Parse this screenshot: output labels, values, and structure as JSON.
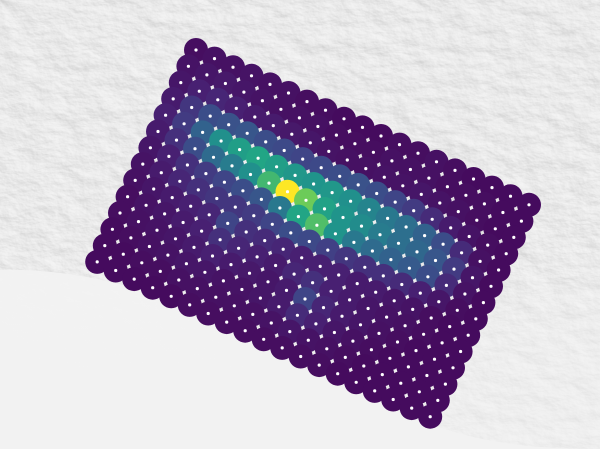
{
  "map": {
    "basemap": "grey-shaded-relief",
    "layer": {
      "type": "grid-cells",
      "colormap": "viridis",
      "cell_marker": "white-dot",
      "rows": 14,
      "cols": 19,
      "values": [
        [
          0.05,
          0.06,
          0.06,
          0.07,
          0.06,
          0.06,
          0.05,
          0.05,
          0.04,
          0.04,
          0.04,
          0.05,
          0.05,
          0.06,
          0.05,
          0.04,
          0.04,
          0.04,
          0.04
        ],
        [
          0.07,
          0.08,
          0.09,
          0.08,
          0.07,
          0.06,
          0.06,
          0.06,
          0.05,
          0.05,
          0.05,
          0.06,
          0.06,
          0.06,
          0.05,
          0.05,
          0.05,
          0.04,
          0.04
        ],
        [
          0.08,
          0.12,
          0.14,
          0.12,
          0.1,
          0.1,
          0.09,
          0.08,
          0.07,
          0.06,
          0.06,
          0.07,
          0.07,
          0.08,
          0.07,
          0.06,
          0.05,
          0.04,
          0.04
        ],
        [
          0.1,
          0.2,
          0.3,
          0.32,
          0.34,
          0.3,
          0.28,
          0.26,
          0.28,
          0.3,
          0.32,
          0.3,
          0.26,
          0.22,
          0.16,
          0.1,
          0.07,
          0.05,
          0.04
        ],
        [
          0.12,
          0.22,
          0.4,
          0.62,
          0.7,
          0.74,
          0.7,
          0.66,
          0.64,
          0.66,
          0.62,
          0.56,
          0.5,
          0.46,
          0.4,
          0.3,
          0.16,
          0.06,
          0.04
        ],
        [
          0.1,
          0.18,
          0.3,
          0.44,
          0.52,
          0.62,
          0.8,
          1.0,
          0.86,
          0.72,
          0.64,
          0.6,
          0.52,
          0.46,
          0.42,
          0.34,
          0.22,
          0.08,
          0.04
        ],
        [
          0.08,
          0.12,
          0.18,
          0.22,
          0.26,
          0.3,
          0.34,
          0.5,
          0.74,
          0.82,
          0.64,
          0.5,
          0.44,
          0.4,
          0.36,
          0.3,
          0.16,
          0.07,
          0.04
        ],
        [
          0.07,
          0.1,
          0.14,
          0.18,
          0.2,
          0.2,
          0.22,
          0.26,
          0.3,
          0.28,
          0.24,
          0.2,
          0.18,
          0.18,
          0.16,
          0.12,
          0.08,
          0.05,
          0.04
        ],
        [
          0.06,
          0.08,
          0.1,
          0.12,
          0.14,
          0.26,
          0.18,
          0.16,
          0.14,
          0.12,
          0.12,
          0.12,
          0.1,
          0.1,
          0.08,
          0.07,
          0.05,
          0.04,
          0.04
        ],
        [
          0.05,
          0.07,
          0.08,
          0.1,
          0.12,
          0.18,
          0.14,
          0.12,
          0.1,
          0.14,
          0.18,
          0.12,
          0.1,
          0.08,
          0.07,
          0.06,
          0.05,
          0.04,
          0.04
        ],
        [
          0.05,
          0.06,
          0.07,
          0.08,
          0.1,
          0.12,
          0.1,
          0.09,
          0.08,
          0.1,
          0.26,
          0.14,
          0.1,
          0.08,
          0.06,
          0.05,
          0.04,
          0.04,
          0.04
        ],
        [
          0.04,
          0.05,
          0.06,
          0.07,
          0.08,
          0.08,
          0.07,
          0.07,
          0.08,
          0.1,
          0.16,
          0.12,
          0.08,
          0.06,
          0.05,
          0.04,
          0.04,
          0.04,
          0.04
        ],
        [
          0.04,
          0.04,
          0.05,
          0.05,
          0.06,
          0.06,
          0.06,
          0.06,
          0.06,
          0.07,
          0.08,
          0.07,
          0.06,
          0.05,
          0.04,
          0.04,
          0.04,
          0.04,
          0.04
        ],
        [
          0.04,
          0.04,
          0.04,
          0.04,
          0.04,
          0.05,
          0.05,
          0.05,
          0.05,
          0.05,
          0.05,
          0.05,
          0.05,
          0.04,
          0.04,
          0.04,
          0.04,
          0.04,
          0.04
        ]
      ]
    }
  }
}
